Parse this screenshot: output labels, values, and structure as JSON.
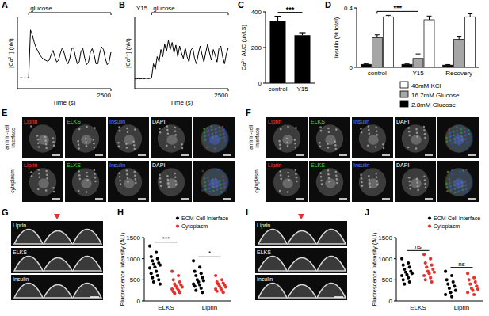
{
  "chart_data": [
    {
      "panel": "A",
      "type": "line",
      "x": [
        0,
        50,
        100,
        150,
        200,
        250,
        300,
        350,
        400,
        450,
        500,
        550,
        600,
        650,
        700,
        750,
        800,
        850,
        900,
        950,
        1000,
        1050,
        1100,
        1150,
        1200,
        1250,
        1300,
        1350,
        1400,
        1450,
        1500,
        1550,
        1600,
        1650,
        1700,
        1750,
        1800,
        1850,
        1900,
        1950,
        2000,
        2050,
        2100,
        2150,
        2200,
        2250,
        2300,
        2350,
        2400,
        2450,
        2500
      ],
      "values": [
        60,
        60,
        62,
        60,
        61,
        60,
        62,
        330,
        300,
        260,
        230,
        210,
        190,
        175,
        165,
        160,
        155,
        160,
        190,
        215,
        180,
        150,
        160,
        200,
        230,
        200,
        160,
        140,
        170,
        225,
        230,
        180,
        140,
        150,
        210,
        225,
        170,
        135,
        150,
        205,
        225,
        190,
        140,
        140,
        200,
        235,
        220,
        170,
        135,
        150,
        205
      ],
      "xlim": [
        0,
        2500
      ],
      "ylim": [
        0,
        400
      ],
      "xticks": [
        2500
      ],
      "tick_labels": "x",
      "x_label": "Time (s)",
      "y_label": "[Ca²⁺] (nM)",
      "color": "#000000",
      "annotations": [
        {
          "text": "glucose",
          "x": [
            300,
            2500
          ]
        }
      ]
    },
    {
      "panel": "B",
      "type": "line",
      "x": [
        0,
        50,
        100,
        150,
        200,
        250,
        300,
        350,
        400,
        450,
        500,
        550,
        600,
        650,
        700,
        750,
        800,
        850,
        900,
        950,
        1000,
        1050,
        1100,
        1150,
        1200,
        1250,
        1300,
        1350,
        1400,
        1450,
        1500,
        1550,
        1600,
        1650,
        1700,
        1750,
        1800,
        1850,
        1900,
        1950,
        2000,
        2050,
        2100,
        2150,
        2200,
        2250,
        2300,
        2350,
        2400,
        2450,
        2500
      ],
      "values": [
        55,
        55,
        56,
        55,
        57,
        55,
        58,
        56,
        57,
        60,
        140,
        110,
        180,
        150,
        220,
        180,
        250,
        210,
        270,
        220,
        260,
        200,
        245,
        180,
        240,
        200,
        170,
        230,
        180,
        150,
        215,
        230,
        170,
        140,
        195,
        240,
        190,
        150,
        205,
        250,
        200,
        160,
        220,
        190,
        150,
        225,
        240,
        180,
        140,
        195,
        230
      ],
      "xlim": [
        0,
        2500
      ],
      "ylim": [
        0,
        400
      ],
      "xticks": [
        2500
      ],
      "tick_labels": "x",
      "x_label": "Time (s)",
      "y_label": "[Ca²⁺] (nM)",
      "color": "#000000",
      "annotations": [
        {
          "text": "Y15",
          "x": 0
        },
        {
          "text": "glucose",
          "x": [
            450,
            2500
          ]
        }
      ]
    },
    {
      "panel": "C",
      "type": "bar",
      "categories": [
        "control",
        "Y15"
      ],
      "values": [
        350,
        270
      ],
      "errors": [
        25,
        10
      ],
      "ylim": [
        0,
        400
      ],
      "yticks": [
        0,
        200,
        400
      ],
      "y_label": "Ca²⁺ AUC (uM.S)",
      "color": "#000000",
      "significance": "***"
    },
    {
      "panel": "D",
      "type": "bar",
      "categories": [
        "control",
        "Y15",
        "Recovery"
      ],
      "series": [
        {
          "name": "2.8mM Glucose",
          "color": "#000000",
          "values": [
            0.02,
            0.02,
            0.015
          ],
          "errors": [
            0.005,
            0.005,
            0.004
          ]
        },
        {
          "name": "16.7mM Glucose",
          "color": "#a6a6a6",
          "values": [
            0.2,
            0.06,
            0.19
          ],
          "errors": [
            0.02,
            0.03,
            0.015
          ]
        },
        {
          "name": "40mM KCl",
          "color": "#ffffff",
          "values": [
            0.34,
            0.32,
            0.34
          ],
          "errors": [
            0.01,
            0.025,
            0.02
          ]
        }
      ],
      "ylim": [
        0,
        0.4
      ],
      "yticks": [
        0,
        0.4
      ],
      "y_label": "Insulin (% total)",
      "significance": "***",
      "legend": "bottom-right"
    },
    {
      "panel": "H",
      "type": "strip",
      "categories": [
        "ELKS",
        "Liprin"
      ],
      "series": [
        {
          "name": "ECM-Cell Interface",
          "color": "#000000",
          "values": [
            [
              1300,
              1150,
              1050,
              1000,
              950,
              900,
              870,
              850,
              800,
              780,
              700,
              650,
              600,
              550,
              500,
              450,
              400
            ],
            [
              950,
              800,
              700,
              650,
              600,
              550,
              500,
              480,
              450,
              400,
              380,
              350,
              300,
              250,
              200
            ]
          ]
        },
        {
          "name": "Cytoplasm",
          "color": "#e8302a",
          "values": [
            [
              700,
              600,
              500,
              450,
              400,
              380,
              350,
              330,
              300,
              280,
              250,
              220,
              200,
              180
            ],
            [
              600,
              500,
              450,
              420,
              400,
              380,
              350,
              330,
              300,
              280,
              250,
              230,
              200
            ]
          ]
        }
      ],
      "ylim": [
        0,
        1500
      ],
      "yticks": [
        0,
        500,
        1000,
        1500
      ],
      "y_label": "Fluorescence Intensity (AU)",
      "significance": [
        "***",
        "*"
      ],
      "legend": "top-right"
    },
    {
      "panel": "J",
      "type": "strip",
      "categories": [
        "ELKS",
        "Liprin"
      ],
      "series": [
        {
          "name": "ECM-Cell Interface",
          "color": "#000000",
          "values": [
            [
              1000,
              900,
              850,
              800,
              750,
              700,
              680,
              650,
              620,
              600,
              550,
              500,
              450,
              400
            ],
            [
              700,
              600,
              500,
              450,
              400,
              350,
              300,
              250,
              200,
              150,
              100
            ]
          ]
        },
        {
          "name": "Cytoplasm",
          "color": "#e8302a",
          "values": [
            [
              1100,
              1000,
              900,
              850,
              800,
              750,
              700,
              680,
              650,
              600,
              550,
              500,
              450
            ],
            [
              650,
              550,
              500,
              450,
              400,
              350,
              300,
              280,
              250,
              200,
              150
            ]
          ]
        }
      ],
      "ylim": [
        0,
        1500
      ],
      "yticks": [
        0,
        500,
        1000,
        1500
      ],
      "y_label": "Fluorescence Intensity (AU)",
      "significance": [
        "ns",
        "ns"
      ],
      "legend": "top-right"
    }
  ],
  "images": [
    {
      "panel": "E",
      "channels": [
        "Liprin",
        "ELKS",
        "Insulin",
        "DAPI"
      ],
      "rows": [
        "laminin-cell Interface",
        "cytoplasm"
      ]
    },
    {
      "panel": "F",
      "channels": [
        "Liprin",
        "ELKS",
        "Insulin",
        "DAPI"
      ],
      "rows": [
        "laminin-cell Interface",
        "cytoplasm"
      ]
    },
    {
      "panel": "G",
      "channels": [
        "Liprin",
        "ELKS",
        "Insulin"
      ]
    },
    {
      "panel": "I",
      "channels": [
        "Liprin",
        "ELKS",
        "Insulin"
      ]
    }
  ]
}
